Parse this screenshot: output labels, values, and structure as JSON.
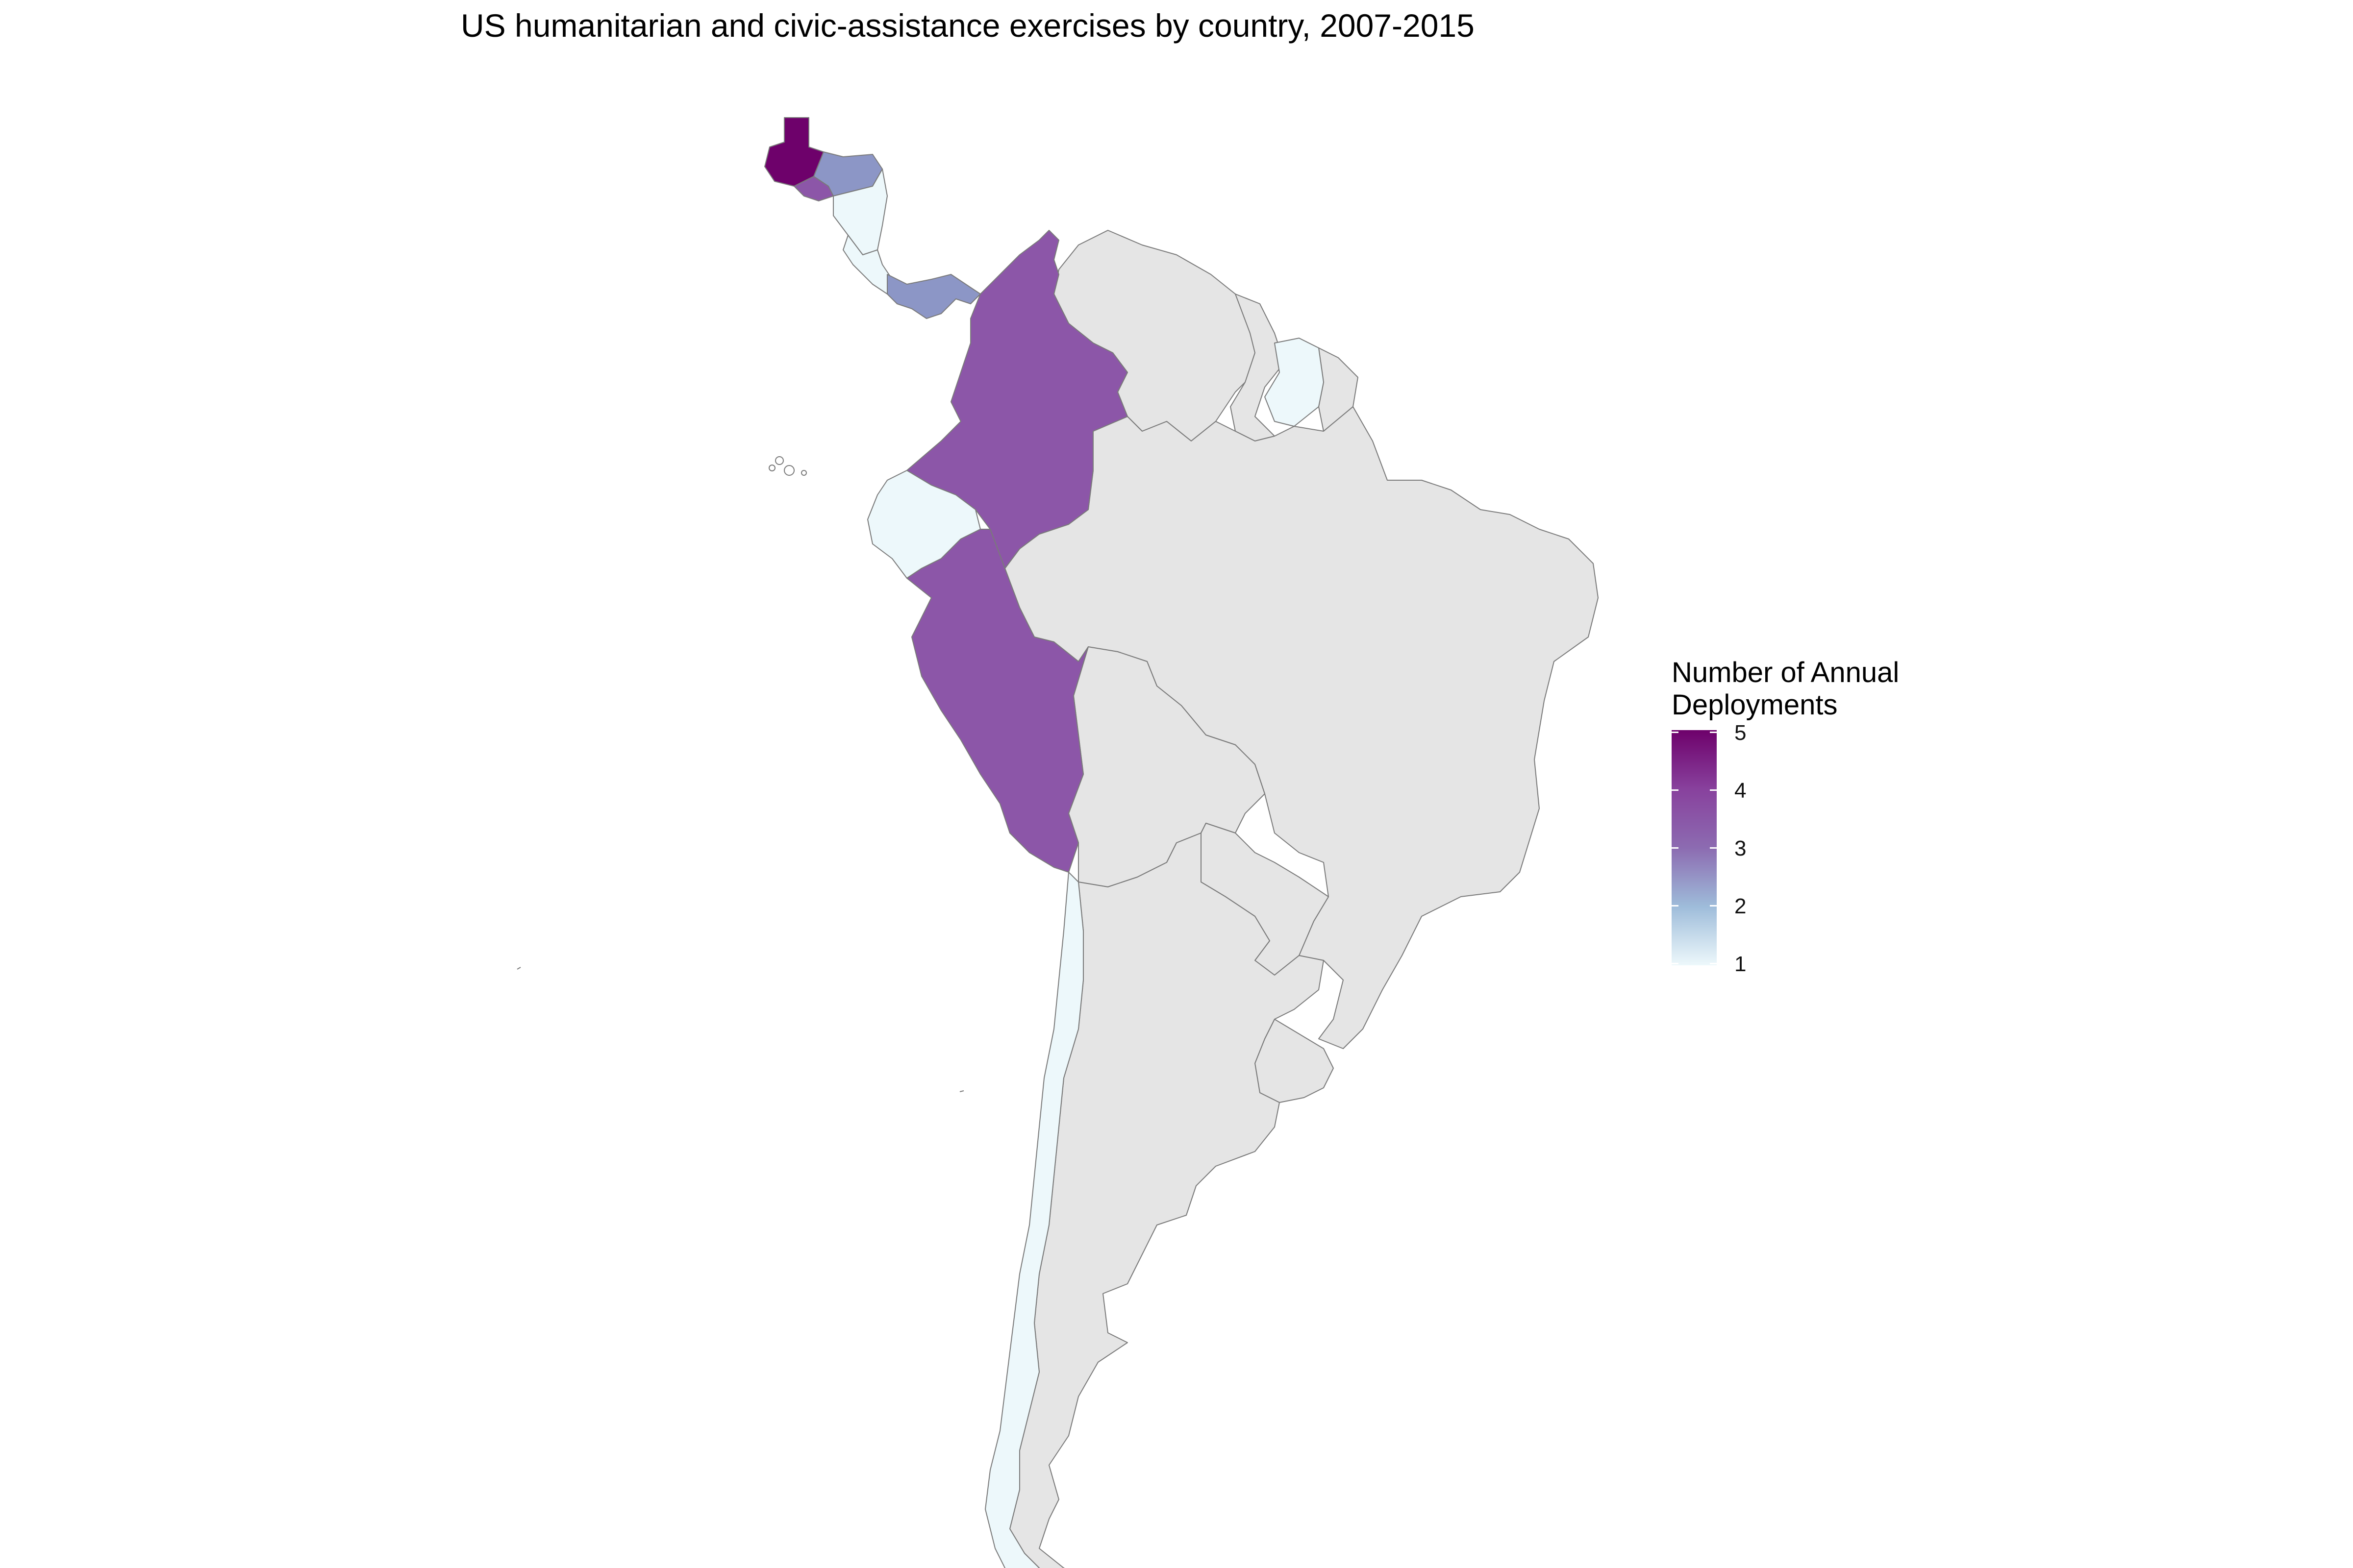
{
  "title": "US humanitarian and civic-assistance exercises by country, 2007-2015",
  "legend": {
    "title_line1": "Number of Annual",
    "title_line2": "Deployments",
    "ticks": [
      "5",
      "4",
      "3",
      "2",
      "1"
    ],
    "min": 1,
    "max": 5,
    "palette": [
      "#edf8fb",
      "#9ebcda",
      "#8c6bb1",
      "#88419d",
      "#6e016b"
    ]
  },
  "no_data_color": "#e5e5e5",
  "countries": [
    {
      "name": "Guatemala",
      "deployments": 5,
      "color": "#6e016b"
    },
    {
      "name": "El Salvador",
      "deployments": 4,
      "color": "#8c56a8"
    },
    {
      "name": "Honduras",
      "deployments": 3,
      "color": "#8c96c6"
    },
    {
      "name": "Nicaragua",
      "deployments": 1,
      "color": "#edf8fb"
    },
    {
      "name": "Costa Rica",
      "deployments": 1,
      "color": "#edf8fb"
    },
    {
      "name": "Panama",
      "deployments": 3,
      "color": "#8c96c6"
    },
    {
      "name": "Colombia",
      "deployments": 4,
      "color": "#8c56a8"
    },
    {
      "name": "Peru",
      "deployments": 4,
      "color": "#8c56a8"
    },
    {
      "name": "Ecuador",
      "deployments": 1,
      "color": "#edf8fb"
    },
    {
      "name": "Suriname",
      "deployments": 1,
      "color": "#edf8fb"
    },
    {
      "name": "Chile",
      "deployments": 1,
      "color": "#edf8fb"
    },
    {
      "name": "Venezuela",
      "deployments": null,
      "color": "#e5e5e5"
    },
    {
      "name": "Guyana",
      "deployments": null,
      "color": "#e5e5e5"
    },
    {
      "name": "French Guiana",
      "deployments": null,
      "color": "#e5e5e5"
    },
    {
      "name": "Brazil",
      "deployments": null,
      "color": "#e5e5e5"
    },
    {
      "name": "Bolivia",
      "deployments": null,
      "color": "#e5e5e5"
    },
    {
      "name": "Paraguay",
      "deployments": null,
      "color": "#e5e5e5"
    },
    {
      "name": "Argentina",
      "deployments": null,
      "color": "#e5e5e5"
    },
    {
      "name": "Uruguay",
      "deployments": null,
      "color": "#e5e5e5"
    }
  ]
}
